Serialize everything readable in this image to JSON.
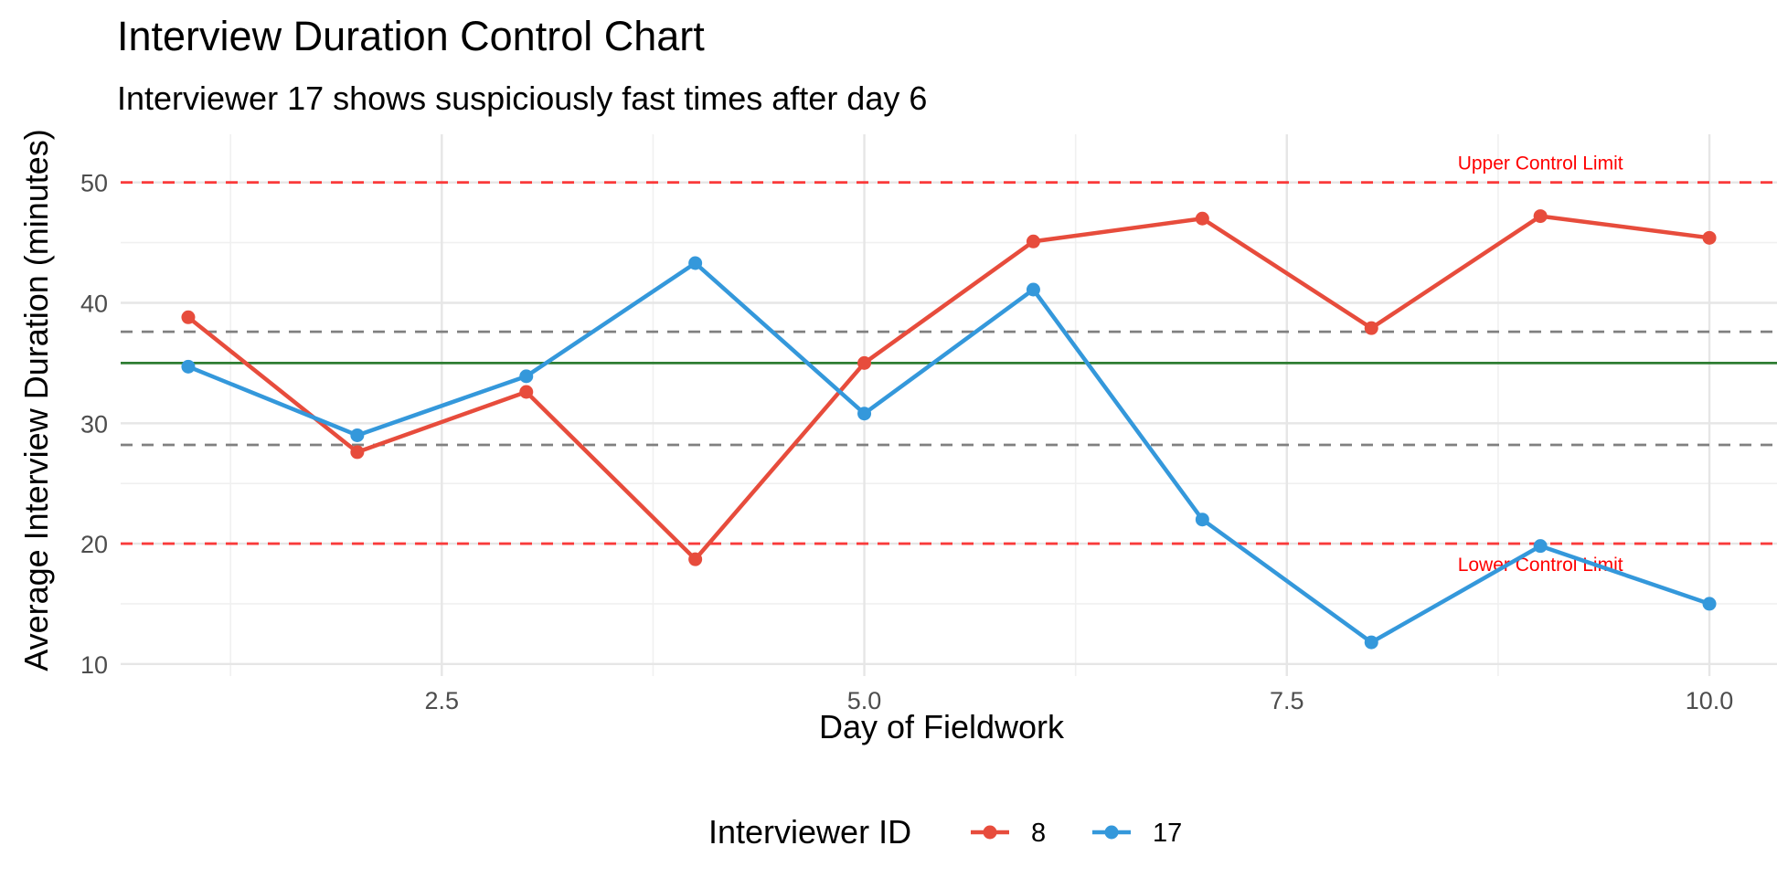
{
  "chart_data": {
    "type": "line",
    "title": "Interview Duration Control Chart",
    "subtitle": "Interviewer 17 shows suspiciously fast times after day 6",
    "xlabel": "Day of Fieldwork",
    "ylabel": "Average Interview Duration (minutes)",
    "xlim": [
      0.6,
      10.4
    ],
    "ylim": [
      9,
      54
    ],
    "x_ticks": [
      2.5,
      5.0,
      7.5,
      10.0
    ],
    "x_tick_labels": [
      "2.5",
      "5.0",
      "7.5",
      "10.0"
    ],
    "y_ticks": [
      10,
      20,
      30,
      40,
      50
    ],
    "y_tick_labels": [
      "10",
      "20",
      "30",
      "40",
      "50"
    ],
    "grid": true,
    "x": [
      1,
      2,
      3,
      4,
      5,
      6,
      7,
      8,
      9,
      10
    ],
    "series": [
      {
        "name": "8",
        "color": "#e74c3c",
        "values": [
          38.8,
          27.6,
          32.6,
          18.7,
          35.0,
          45.1,
          47.0,
          37.9,
          47.2,
          45.4
        ]
      },
      {
        "name": "17",
        "color": "#3498db",
        "values": [
          34.7,
          29.0,
          33.9,
          43.3,
          30.8,
          41.1,
          22.0,
          11.8,
          19.8,
          15.0
        ]
      }
    ],
    "reference_lines": [
      {
        "value": 50,
        "style": "dashed",
        "color": "#ff0000",
        "label": "Upper Control Limit"
      },
      {
        "value": 20,
        "style": "dashed",
        "color": "#ff0000",
        "label": "Lower Control Limit"
      },
      {
        "value": 37.6,
        "style": "dashed",
        "color": "#808080",
        "label": ""
      },
      {
        "value": 28.2,
        "style": "dashed",
        "color": "#808080",
        "label": ""
      },
      {
        "value": 35.0,
        "style": "solid",
        "color": "#2e7d32",
        "label": ""
      }
    ],
    "legend": {
      "title": "Interviewer ID",
      "position": "bottom",
      "entries": [
        "8",
        "17"
      ]
    }
  }
}
